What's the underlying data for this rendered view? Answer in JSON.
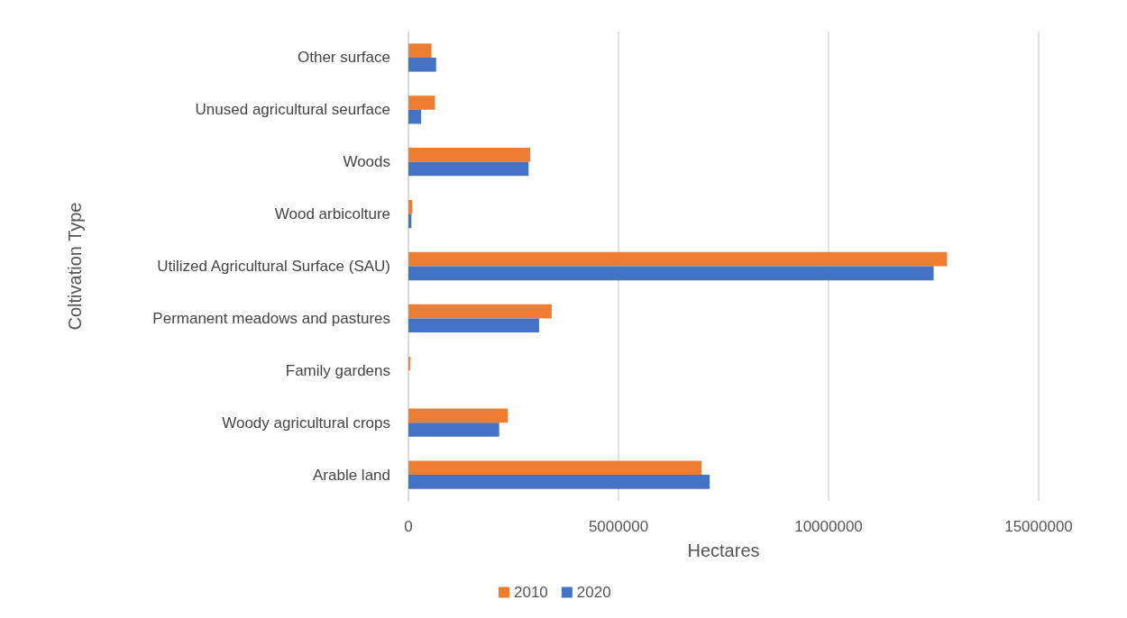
{
  "chart_data": {
    "type": "bar",
    "orientation": "horizontal",
    "xlabel": "Hectares",
    "ylabel": "Coltivation Type",
    "categories": [
      "Other surface",
      "Unused agricultural seurface",
      "Woods",
      "Wood arbicolture",
      "Utilized Agricultural Surface (SAU)",
      "Permanent meadows and pastures",
      "Family gardens",
      "Woody agricultural crops",
      "Arable land"
    ],
    "series": [
      {
        "name": "2010",
        "color": "#ed7d31",
        "values": [
          550000,
          630000,
          2900000,
          90000,
          12820000,
          3410000,
          40000,
          2360000,
          6980000
        ]
      },
      {
        "name": "2020",
        "color": "#4472c4",
        "values": [
          660000,
          300000,
          2860000,
          70000,
          12500000,
          3110000,
          null,
          2160000,
          7170000
        ]
      }
    ],
    "xlim": [
      0,
      15000000
    ],
    "xticks": [
      0,
      5000000,
      10000000,
      15000000
    ],
    "grid": "x",
    "legend": "bottom"
  }
}
